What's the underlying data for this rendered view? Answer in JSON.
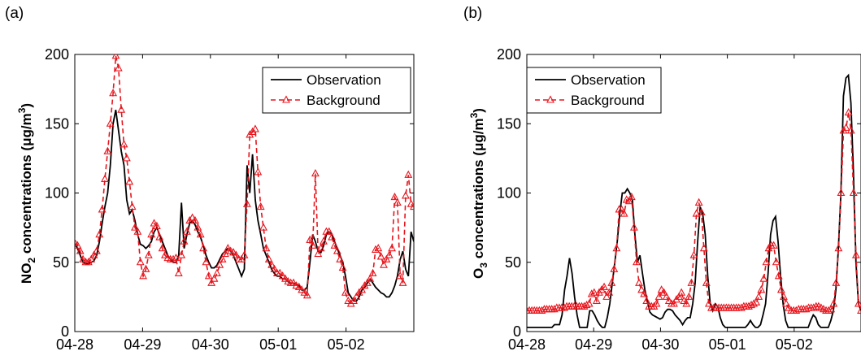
{
  "chart_data": [
    {
      "type": "line",
      "panel_label": "(a)",
      "ylabel": {
        "main": "NO",
        "sub": "2",
        "rest": " concentrations  (μg/m",
        "sup": "3",
        "end": ")"
      },
      "ylim": [
        0,
        200
      ],
      "yticks": [
        "0",
        "50",
        "100",
        "150",
        "200"
      ],
      "xlim": [
        0,
        5
      ],
      "xticks": [
        "04-28",
        "04-29",
        "04-30",
        "05-01",
        "05-02"
      ],
      "grid": false,
      "legend_position": "top-right",
      "colors": {
        "observation": "#000000",
        "background": "#e8141c"
      },
      "series": [
        {
          "name": "Observation",
          "style": "solid",
          "values": [
            63,
            60,
            55,
            50,
            49,
            49,
            50,
            51,
            55,
            65,
            78,
            90,
            100,
            120,
            150,
            160,
            145,
            130,
            120,
            95,
            85,
            88,
            80,
            70,
            63,
            62,
            60,
            62,
            65,
            72,
            75,
            70,
            65,
            60,
            55,
            52,
            50,
            50,
            55,
            93,
            60,
            70,
            78,
            80,
            77,
            72,
            68,
            62,
            55,
            50,
            46,
            46,
            48,
            52,
            56,
            58,
            60,
            58,
            55,
            50,
            45,
            40,
            45,
            120,
            100,
            128,
            95,
            80,
            70,
            60,
            55,
            50,
            45,
            42,
            40,
            40,
            38,
            38,
            36,
            35,
            35,
            34,
            33,
            30,
            30,
            32,
            50,
            70,
            65,
            58,
            57,
            62,
            70,
            72,
            70,
            65,
            60,
            55,
            50,
            40,
            28,
            25,
            22,
            22,
            25,
            30,
            32,
            35,
            38,
            35,
            32,
            30,
            28,
            27,
            25,
            25,
            28,
            33,
            40,
            52,
            58,
            45,
            40,
            72,
            65
          ]
        },
        {
          "name": "Background",
          "style": "dashed-triangle",
          "values": [
            64,
            62,
            58,
            52,
            50,
            50,
            52,
            55,
            58,
            70,
            88,
            110,
            130,
            150,
            172,
            199,
            190,
            160,
            135,
            125,
            108,
            90,
            75,
            72,
            50,
            40,
            45,
            55,
            70,
            78,
            76,
            68,
            60,
            55,
            53,
            52,
            52,
            53,
            42,
            55,
            65,
            72,
            80,
            82,
            80,
            75,
            70,
            60,
            50,
            40,
            35,
            38,
            42,
            48,
            52,
            56,
            60,
            58,
            57,
            55,
            52,
            52,
            55,
            92,
            142,
            144,
            146,
            115,
            90,
            75,
            60,
            52,
            48,
            45,
            42,
            42,
            40,
            38,
            36,
            35,
            35,
            33,
            32,
            30,
            28,
            26,
            66,
            62,
            114,
            56,
            60,
            65,
            72,
            72,
            68,
            62,
            58,
            52,
            46,
            28,
            22,
            20,
            22,
            25,
            28,
            30,
            33,
            35,
            38,
            42,
            59,
            60,
            54,
            48,
            52,
            55,
            60,
            97,
            93,
            40,
            35,
            98,
            113,
            92,
            90
          ]
        }
      ]
    },
    {
      "type": "line",
      "panel_label": "(b)",
      "ylabel": {
        "main": "O",
        "sub": "3",
        "rest": " concentrations  (μg/m",
        "sup": "3",
        "end": ")"
      },
      "ylim": [
        0,
        200
      ],
      "yticks": [
        "0",
        "50",
        "100",
        "150",
        "200"
      ],
      "xlim": [
        0,
        5
      ],
      "xticks": [
        "04-28",
        "04-29",
        "04-30",
        "05-01",
        "05-02"
      ],
      "grid": false,
      "legend_position": "top-left",
      "colors": {
        "observation": "#000000",
        "background": "#e8141c"
      },
      "series": [
        {
          "name": "Observation",
          "style": "solid",
          "values": [
            3,
            3,
            3,
            3,
            3,
            3,
            3,
            3,
            3,
            3,
            3,
            5,
            5,
            5,
            12,
            30,
            40,
            53,
            42,
            25,
            12,
            3,
            3,
            3,
            3,
            15,
            15,
            12,
            8,
            5,
            3,
            3,
            10,
            20,
            35,
            50,
            65,
            85,
            100,
            100,
            103,
            100,
            95,
            70,
            50,
            55,
            42,
            30,
            22,
            14,
            12,
            11,
            10,
            9,
            10,
            14,
            16,
            16,
            15,
            12,
            10,
            8,
            5,
            8,
            10,
            10,
            20,
            35,
            65,
            90,
            85,
            70,
            40,
            20,
            15,
            20,
            18,
            10,
            5,
            3,
            3,
            3,
            3,
            3,
            3,
            3,
            3,
            3,
            5,
            8,
            5,
            3,
            3,
            5,
            12,
            20,
            42,
            70,
            80,
            83,
            65,
            40,
            20,
            8,
            3,
            3,
            3,
            3,
            3,
            3,
            3,
            3,
            3,
            8,
            12,
            10,
            5,
            3,
            3,
            3,
            3,
            8,
            15,
            30,
            60,
            100,
            170,
            183,
            185,
            165,
            115,
            50,
            20,
            15
          ]
        },
        {
          "name": "Background",
          "style": "dashed-triangle",
          "values": [
            15,
            15,
            15,
            15,
            15,
            15,
            15,
            16,
            16,
            16,
            16,
            16,
            17,
            17,
            17,
            17,
            18,
            18,
            18,
            18,
            18,
            18,
            18,
            18,
            19,
            20,
            27,
            28,
            22,
            28,
            30,
            32,
            25,
            28,
            35,
            45,
            60,
            88,
            88,
            85,
            95,
            94,
            97,
            75,
            50,
            35,
            30,
            27,
            22,
            18,
            18,
            18,
            20,
            25,
            30,
            28,
            25,
            22,
            20,
            20,
            23,
            25,
            28,
            22,
            20,
            25,
            35,
            55,
            85,
            93,
            86,
            60,
            35,
            20,
            17,
            17,
            17,
            17,
            17,
            17,
            17,
            17,
            17,
            17,
            17,
            17,
            17,
            18,
            18,
            18,
            19,
            20,
            21,
            25,
            30,
            38,
            50,
            60,
            62,
            62,
            50,
            40,
            30,
            25,
            20,
            17,
            15,
            15,
            15,
            16,
            16,
            16,
            16,
            17,
            17,
            17,
            18,
            18,
            17,
            16,
            15,
            15,
            16,
            20,
            35,
            60,
            100,
            145,
            147,
            158,
            145,
            100,
            55,
            20,
            15
          ]
        }
      ]
    }
  ]
}
